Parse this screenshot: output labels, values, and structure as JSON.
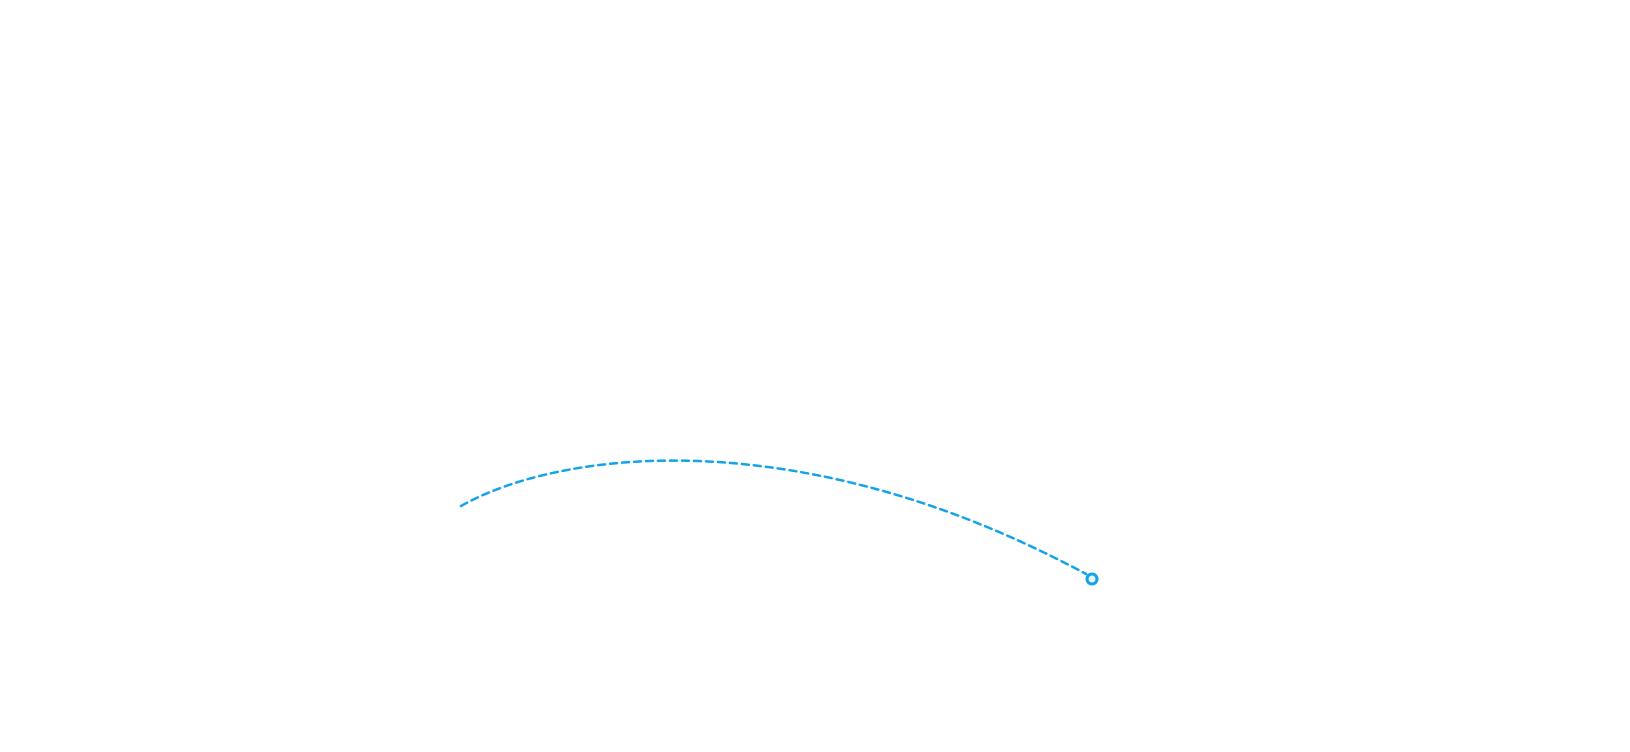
{
  "canvas": {
    "background_color": "#ffffff",
    "connector": {
      "style": "dashed",
      "stroke_color": "#12a3ea",
      "end_marker": "circle-handle-icon"
    }
  }
}
